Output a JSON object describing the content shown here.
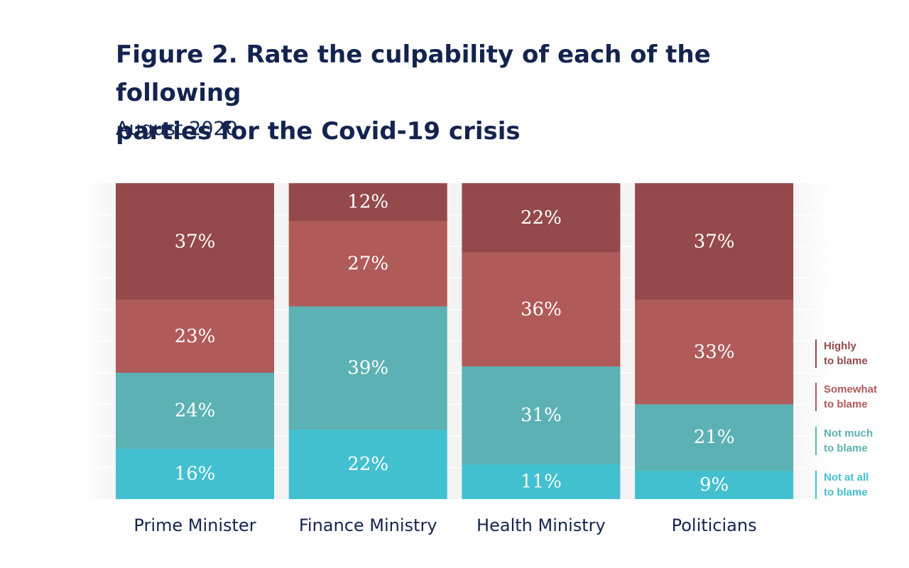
{
  "title_line1": "Figure 2. Rate the culpability of each of the following",
  "title_line2": "parties for the Covid-19 crisis",
  "subtitle": "August 2020",
  "chart_data": {
    "type": "bar",
    "stacked": true,
    "normalized": true,
    "categories": [
      "Prime Minister",
      "Finance Ministry",
      "Health Ministry",
      "Politicians"
    ],
    "series": [
      {
        "name": "Not at all to blame",
        "legend_lines": [
          "Not at all",
          "to blame"
        ],
        "color": "#42c0cf",
        "values": [
          16,
          22,
          11,
          9
        ],
        "labels": [
          "16%",
          "22%",
          "11%",
          "9%"
        ]
      },
      {
        "name": "Not much to blame",
        "legend_lines": [
          "Not much",
          "to blame"
        ],
        "color": "#5bb1b3",
        "values": [
          24,
          39,
          31,
          21
        ],
        "labels": [
          "24%",
          "39%",
          "31%",
          "21%"
        ]
      },
      {
        "name": "Somewhat to blame",
        "legend_lines": [
          "Somewhat",
          "to blame"
        ],
        "color": "#b05a59",
        "values": [
          23,
          27,
          36,
          33
        ],
        "labels": [
          "23%",
          "27%",
          "36%",
          "33%"
        ]
      },
      {
        "name": "Highly to blame",
        "legend_lines": [
          "Highly",
          "to blame"
        ],
        "color": "#944a4a",
        "values": [
          37,
          12,
          22,
          37
        ],
        "labels": [
          "37%",
          "12%",
          "22%",
          "37%"
        ]
      }
    ],
    "ylim": [
      0,
      100
    ],
    "legend_position": "right",
    "grid": true
  }
}
